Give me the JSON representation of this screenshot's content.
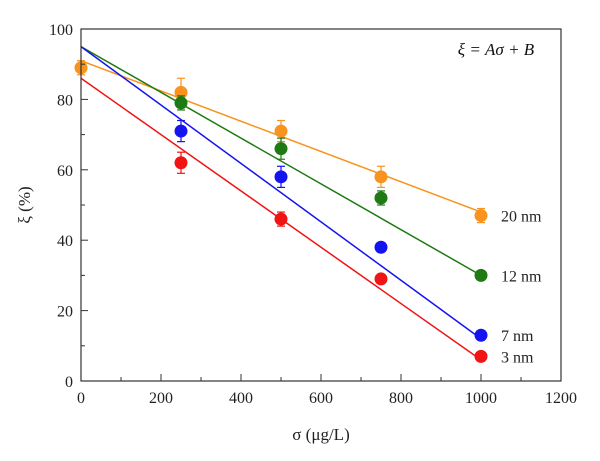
{
  "chart_data": {
    "type": "scatter",
    "xlabel": "σ (μg/L)",
    "ylabel": "ξ (%)",
    "xlim": [
      0,
      1200
    ],
    "ylim": [
      0,
      100
    ],
    "xticks": [
      0,
      200,
      400,
      600,
      800,
      1000,
      1200
    ],
    "yticks": [
      0,
      20,
      40,
      60,
      80,
      100
    ],
    "annotation": "ξ = Aσ + B",
    "legend_placement": "top-right annotation; series labels at line ends",
    "grid": false,
    "series": [
      {
        "name": "20 nm",
        "color": "#f7931e",
        "x": [
          0,
          250,
          500,
          750,
          1000
        ],
        "y": [
          89,
          82,
          71,
          58,
          47
        ],
        "err": [
          2,
          4,
          3,
          3,
          2
        ],
        "fit": {
          "x": [
            0,
            1000
          ],
          "y": [
            91,
            48
          ]
        }
      },
      {
        "name": "12 nm",
        "color": "#1e7a12",
        "x": [
          250,
          500,
          750,
          1000
        ],
        "y": [
          79,
          66,
          52,
          30
        ],
        "err": [
          2,
          3,
          2,
          1
        ],
        "fit": {
          "x": [
            0,
            1000
          ],
          "y": [
            95,
            30
          ]
        }
      },
      {
        "name": "7 nm",
        "color": "#1414f0",
        "x": [
          250,
          500,
          750,
          1000
        ],
        "y": [
          71,
          58,
          38,
          13
        ],
        "err": [
          3,
          3,
          1,
          1
        ],
        "fit": {
          "x": [
            0,
            1000
          ],
          "y": [
            95,
            12
          ]
        }
      },
      {
        "name": "3 nm",
        "color": "#f01414",
        "x": [
          250,
          500,
          750,
          1000
        ],
        "y": [
          62,
          46,
          29,
          7
        ],
        "err": [
          3,
          2,
          1,
          1
        ],
        "fit": {
          "x": [
            0,
            1000
          ],
          "y": [
            86,
            6
          ]
        }
      }
    ]
  }
}
